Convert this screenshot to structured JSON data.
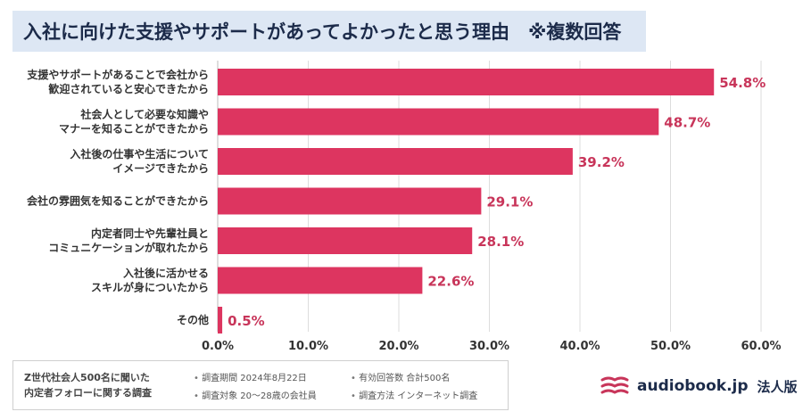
{
  "title": "入社に向けた支援やサポートがあってよかったと思う理由　※複数回答",
  "chart_data": {
    "type": "bar",
    "orientation": "horizontal",
    "categories": [
      [
        "支援やサポートがあることで会社から",
        "歓迎されていると安心できたから"
      ],
      [
        "社会人として必要な知識や",
        "マナーを知ることができたから"
      ],
      [
        "入社後の仕事や生活について",
        "イメージできたから"
      ],
      [
        "会社の雰囲気を知ることができたから"
      ],
      [
        "内定者同士や先輩社員と",
        "コミュニケーションが取れたから"
      ],
      [
        "入社後に活かせる",
        "スキルが身についたから"
      ],
      [
        "その他"
      ]
    ],
    "values": [
      54.8,
      48.7,
      39.2,
      29.1,
      28.1,
      22.6,
      0.5
    ],
    "value_labels": [
      "54.8%",
      "48.7%",
      "39.2%",
      "29.1%",
      "28.1%",
      "22.6%",
      "0.5%"
    ],
    "xlim": [
      0,
      60
    ],
    "ticks": [
      0,
      10,
      20,
      30,
      40,
      50,
      60
    ],
    "tick_labels": [
      "0.0%",
      "10.0%",
      "20.0%",
      "30.0%",
      "40.0%",
      "50.0%",
      "60.0%"
    ],
    "grid": "vertical",
    "bar_color": "#dd3560",
    "label_color": "#c8355a"
  },
  "footer": {
    "survey_title": [
      "Z世代社会人500名に聞いた",
      "内定者フォローに関する調査"
    ],
    "meta": [
      [
        "調査期間 2024年8月22日",
        "調査対象 20～28歳の会社員"
      ],
      [
        "有効回答数 合計500名",
        "調査方法 インターネット調査"
      ]
    ]
  },
  "brand": {
    "name": "audiobook.jp",
    "suffix": "法人版",
    "color": "#c8355a"
  }
}
